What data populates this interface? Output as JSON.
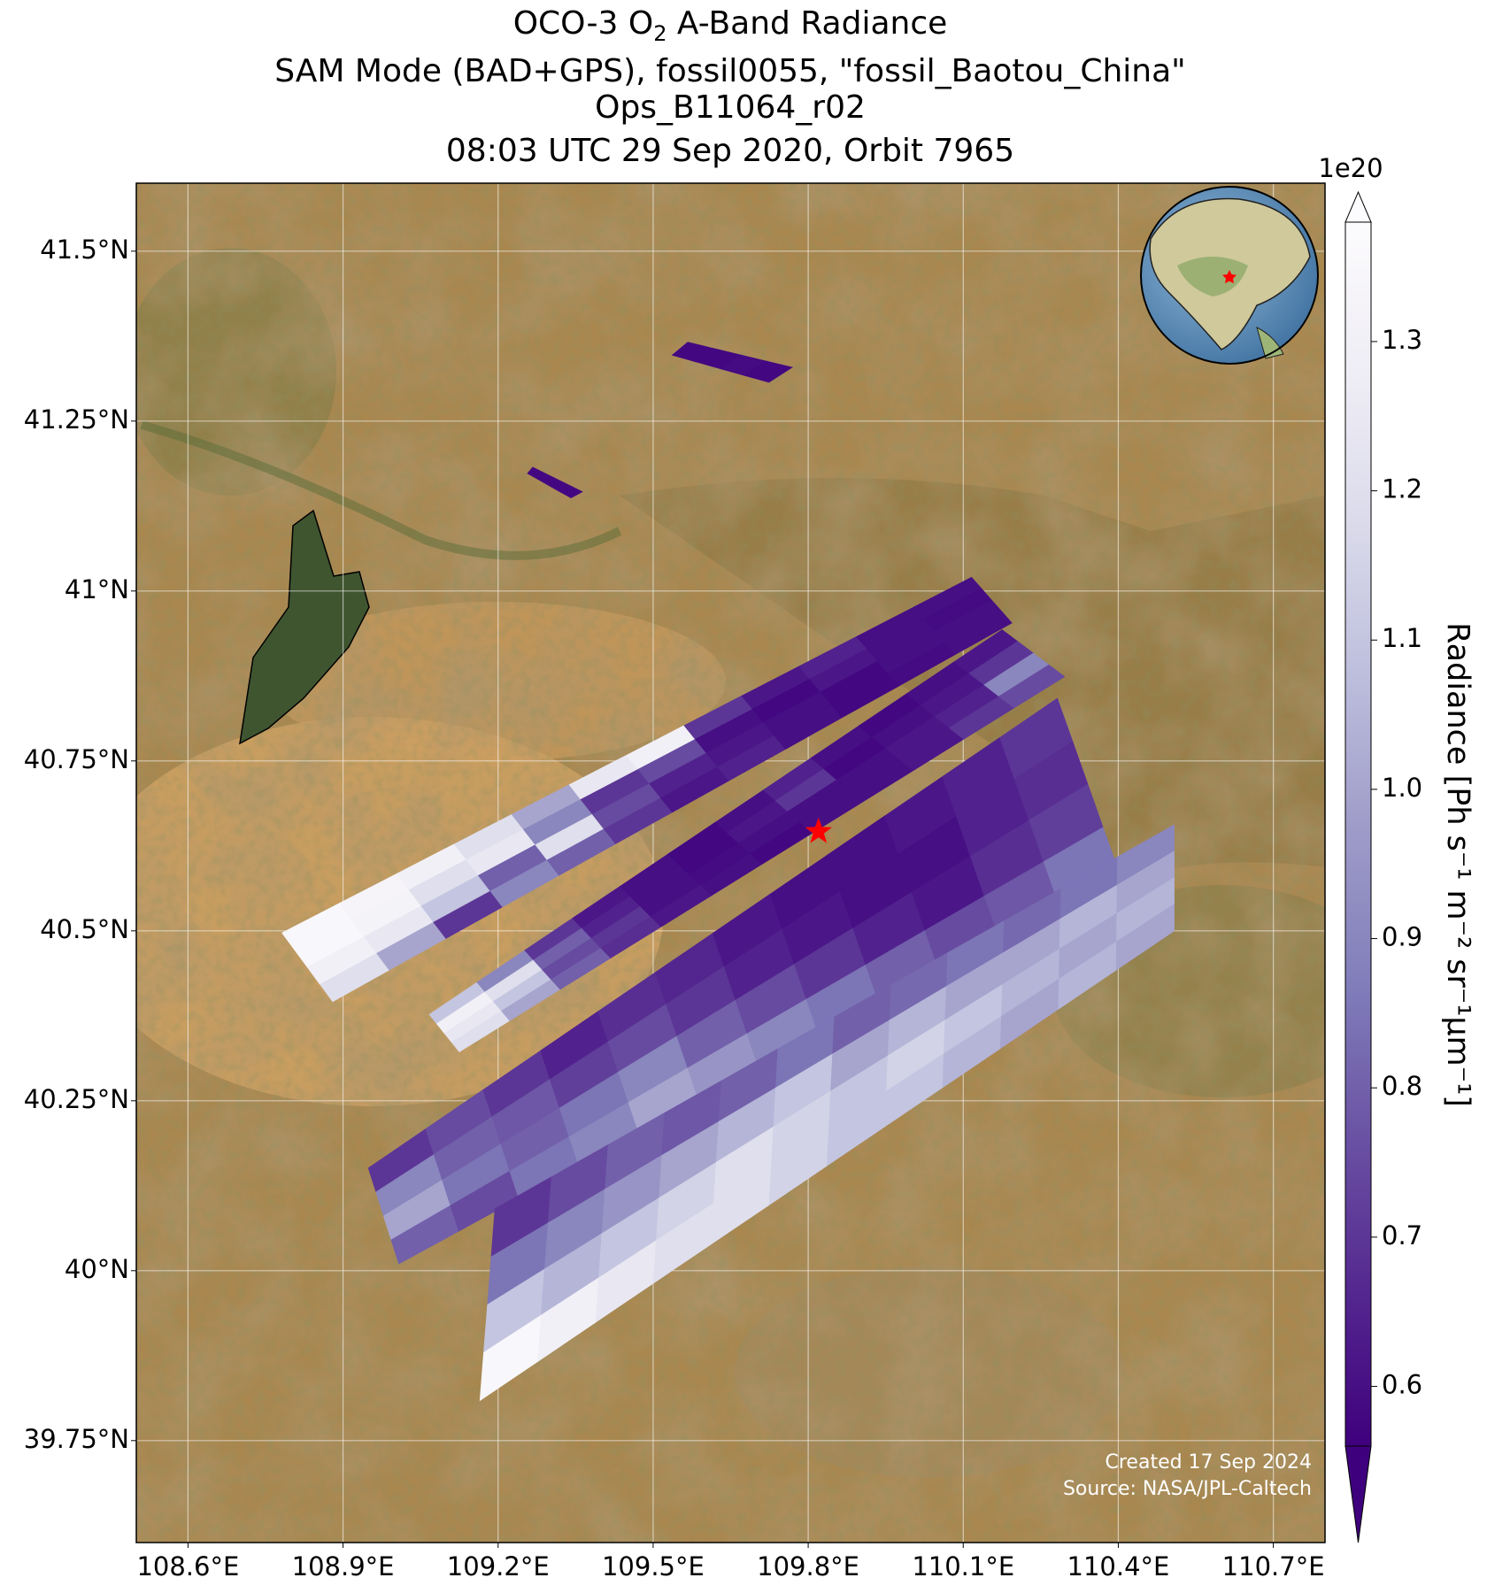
{
  "map": {
    "title": {
      "line1": {
        "before": "OCO-3 O",
        "sub": "2",
        "after": " A-Band Radiance"
      },
      "line2": "SAM Mode (BAD+GPS), fossil0055, \"fossil_Baotou_China\"",
      "line3": "Ops_B11064_r02",
      "line4": "08:03 UTC 29 Sep 2020, Orbit 7965"
    },
    "xlim": [
      108.5,
      110.8
    ],
    "ylim": [
      39.6,
      41.6
    ],
    "xticks": [
      {
        "value": 108.6,
        "label": "108.6°E"
      },
      {
        "value": 108.9,
        "label": "108.9°E"
      },
      {
        "value": 109.2,
        "label": "109.2°E"
      },
      {
        "value": 109.5,
        "label": "109.5°E"
      },
      {
        "value": 109.8,
        "label": "109.8°E"
      },
      {
        "value": 110.1,
        "label": "110.1°E"
      },
      {
        "value": 110.4,
        "label": "110.4°E"
      },
      {
        "value": 110.7,
        "label": "110.7°E"
      }
    ],
    "yticks": [
      {
        "value": 41.5,
        "label": "41.5°N"
      },
      {
        "value": 41.25,
        "label": "41.25°N"
      },
      {
        "value": 41,
        "label": "41°N"
      },
      {
        "value": 40.75,
        "label": "40.75°N"
      },
      {
        "value": 40.5,
        "label": "40.5°N"
      },
      {
        "value": 40.25,
        "label": "40.25°N"
      },
      {
        "value": 40,
        "label": "40°N"
      },
      {
        "value": 39.75,
        "label": "39.75°N"
      }
    ],
    "grid": true,
    "colorbar": {
      "label": "Radiance [Ph s⁻¹ m⁻² sr⁻¹μm⁻¹]",
      "offset_label": "1e20",
      "clim": [
        0.56,
        1.38
      ],
      "ticks": [
        0.6,
        0.7,
        0.8,
        0.9,
        {
          "value": 1.0,
          "label": "1.0"
        },
        1.1,
        1.2,
        1.3
      ],
      "extend": "both",
      "colormap": [
        "#3f007d",
        "#54278f",
        "#6a51a3",
        "#807dba",
        "#9e9ac8",
        "#bcbddc",
        "#dadaeb",
        "#efedf5",
        "#fcfbfd"
      ]
    },
    "target": {
      "lon": 109.82,
      "lat": 40.646,
      "color": "#ff0000"
    },
    "swaths": [
      {
        "corners": [
          [
            108.782,
            40.497
          ],
          [
            110.116,
            41.02
          ],
          [
            110.194,
            40.953
          ],
          [
            108.88,
            40.396
          ]
        ],
        "values": [
          [
            1.35,
            1.33,
            1.3,
            1.2,
            1.0,
            1.25,
            1.3,
            0.7,
            0.62,
            0.65,
            0.6,
            0.6
          ],
          [
            1.35,
            1.32,
            1.2,
            1.25,
            0.9,
            0.7,
            0.75,
            0.6,
            0.58,
            0.62,
            0.6,
            0.59
          ],
          [
            1.3,
            1.25,
            1.1,
            0.8,
            1.2,
            0.75,
            0.65,
            0.62,
            0.6,
            0.58,
            0.6,
            0.6
          ],
          [
            1.2,
            1.0,
            0.7,
            0.9,
            0.8,
            0.7,
            0.62,
            0.65,
            0.6,
            0.58,
            0.59,
            0.6
          ]
        ]
      },
      {
        "corners": [
          [
            109.067,
            40.377
          ],
          [
            110.175,
            40.943
          ],
          [
            110.296,
            40.874
          ],
          [
            109.125,
            40.322
          ]
        ],
        "values": [
          [
            1.1,
            0.9,
            0.7,
            0.62,
            0.6,
            0.58,
            0.6,
            0.65,
            0.6,
            0.58,
            0.6,
            0.62
          ],
          [
            1.3,
            1.2,
            0.8,
            0.65,
            0.6,
            0.58,
            0.62,
            0.7,
            0.58,
            0.6,
            0.62,
            0.7
          ],
          [
            1.25,
            1.1,
            0.75,
            0.7,
            0.6,
            0.59,
            0.6,
            0.6,
            0.6,
            0.62,
            0.65,
            0.9
          ],
          [
            1.2,
            1.0,
            0.8,
            0.68,
            0.62,
            0.6,
            0.58,
            0.6,
            0.6,
            0.62,
            0.7,
            0.75
          ]
        ]
      },
      {
        "corners": [
          [
            108.949,
            40.151
          ],
          [
            110.282,
            40.842
          ],
          [
            110.4,
            40.589
          ],
          [
            109.008,
            40.01
          ]
        ],
        "values": [
          [
            0.7,
            0.75,
            0.7,
            0.65,
            0.68,
            0.66,
            0.62,
            0.6,
            0.6,
            0.62,
            0.65,
            0.7
          ],
          [
            0.9,
            0.8,
            0.78,
            0.72,
            0.75,
            0.7,
            0.65,
            0.62,
            0.6,
            0.6,
            0.65,
            0.68
          ],
          [
            1.0,
            0.85,
            0.8,
            0.85,
            0.9,
            0.8,
            0.75,
            0.7,
            0.65,
            0.62,
            0.68,
            0.72
          ],
          [
            0.8,
            0.75,
            0.85,
            0.9,
            1.0,
            0.95,
            0.9,
            0.85,
            0.8,
            0.75,
            0.78,
            0.85
          ]
        ]
      },
      {
        "corners": [
          [
            109.194,
            40.091
          ],
          [
            110.508,
            40.656
          ],
          [
            110.508,
            40.5
          ],
          [
            109.165,
            39.809
          ]
        ],
        "values": [
          [
            0.7,
            0.75,
            0.8,
            0.78,
            0.8,
            0.85,
            0.8,
            0.82,
            0.85,
            0.82,
            0.85,
            0.9
          ],
          [
            0.85,
            0.9,
            0.95,
            1.0,
            1.05,
            1.1,
            1.0,
            1.05,
            1.0,
            1.0,
            1.05,
            1.0
          ],
          [
            1.1,
            1.05,
            1.1,
            1.15,
            1.2,
            1.15,
            1.1,
            1.15,
            1.1,
            1.05,
            1.0,
            1.05
          ],
          [
            1.35,
            1.3,
            1.25,
            1.2,
            1.2,
            1.15,
            1.1,
            1.1,
            1.05,
            1.0,
            1.05,
            1.0
          ]
        ]
      },
      {
        "corners": [
          [
            109.567,
            41.366
          ],
          [
            109.769,
            41.329
          ],
          [
            109.724,
            41.307
          ],
          [
            109.537,
            41.347
          ]
        ],
        "values": [
          [
            0.58,
            0.58,
            0.59,
            0.58
          ]
        ]
      },
      {
        "corners": [
          [
            109.267,
            41.182
          ],
          [
            109.363,
            41.146
          ],
          [
            109.341,
            41.137
          ],
          [
            109.257,
            41.173
          ]
        ],
        "values": [
          [
            0.58,
            0.58
          ]
        ]
      }
    ],
    "footer": {
      "line1": "Created 17 Sep 2024",
      "line2": "Source: NASA/JPL-Caltech"
    }
  }
}
